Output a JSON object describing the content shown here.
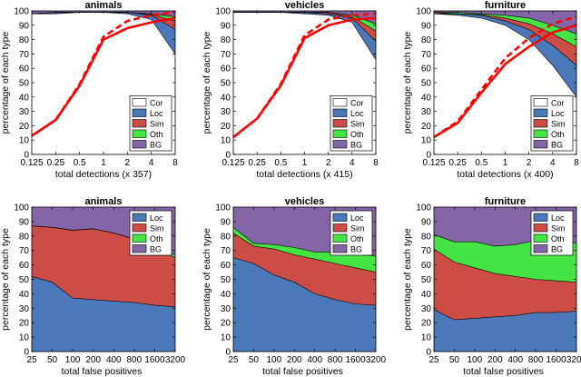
{
  "colors": {
    "cor": "#ffffff",
    "loc": "#4a78b8",
    "sim": "#cc4c46",
    "oth": "#45e445",
    "bg": "#8466a6",
    "recall": "#ff0000"
  },
  "chart_data": [
    {
      "type": "area",
      "title": "animals",
      "xlabel": "total detections (x 357)",
      "ylabel": "percentage of each type",
      "xscale": "log2",
      "xlim": [
        0.125,
        8
      ],
      "ylim": [
        0,
        100
      ],
      "xticks": [
        "0.125",
        "0.25",
        "0.5",
        "1",
        "2",
        "4",
        "8"
      ],
      "yticks": [
        "0",
        "10",
        "20",
        "30",
        "40",
        "50",
        "60",
        "70",
        "80",
        "90",
        "100"
      ],
      "legend": [
        "Cor",
        "Loc",
        "Sim",
        "Oth",
        "BG"
      ],
      "legend_position": "bottom-right",
      "x": [
        0.125,
        0.25,
        0.5,
        1,
        2,
        4,
        8
      ],
      "bands_cumulative": {
        "Cor": [
          98,
          98,
          99,
          99,
          98,
          94,
          70
        ],
        "Loc": [
          98,
          99,
          99,
          99,
          99,
          97,
          87
        ],
        "Sim": [
          98,
          99,
          99,
          99,
          99,
          97.5,
          93
        ],
        "Oth": [
          98,
          99,
          99,
          99,
          99,
          98,
          96
        ]
      },
      "recall_solid": [
        13,
        24,
        48,
        80,
        88,
        92,
        95
      ],
      "recall_dashed": [
        13,
        24,
        49,
        82,
        93,
        97,
        99
      ]
    },
    {
      "type": "area",
      "title": "vehicles",
      "xlabel": "total detections (x 415)",
      "ylabel": "percentage of each type",
      "xscale": "log2",
      "xlim": [
        0.125,
        8
      ],
      "ylim": [
        0,
        100
      ],
      "xticks": [
        "0.125",
        "0.25",
        "0.5",
        "1",
        "2",
        "4",
        "8"
      ],
      "yticks": [
        "0",
        "10",
        "20",
        "30",
        "40",
        "50",
        "60",
        "70",
        "80",
        "90",
        "100"
      ],
      "legend": [
        "Cor",
        "Loc",
        "Sim",
        "Oth",
        "BG"
      ],
      "legend_position": "bottom-right",
      "x": [
        0.125,
        0.25,
        0.5,
        1,
        2,
        4,
        8
      ],
      "bands_cumulative": {
        "Cor": [
          99,
          99,
          99,
          98,
          97,
          92,
          66
        ],
        "Loc": [
          99,
          99,
          99,
          99,
          98,
          95,
          79
        ],
        "Sim": [
          99,
          99,
          99,
          99,
          99,
          96,
          86
        ],
        "Oth": [
          99,
          99,
          99,
          99,
          99,
          97,
          91
        ]
      },
      "recall_solid": [
        12,
        25,
        48,
        81,
        90,
        94,
        95
      ],
      "recall_dashed": [
        12,
        25,
        49,
        83,
        94,
        97,
        98
      ]
    },
    {
      "type": "area",
      "title": "furniture",
      "xlabel": "total detections (x 400)",
      "ylabel": "percentage of each type",
      "xscale": "log2",
      "xlim": [
        0.125,
        8
      ],
      "ylim": [
        0,
        100
      ],
      "xticks": [
        "0.125",
        "0.25",
        "0.5",
        "1",
        "2",
        "4",
        "8"
      ],
      "yticks": [
        "0",
        "10",
        "20",
        "30",
        "40",
        "50",
        "60",
        "70",
        "80",
        "90",
        "100"
      ],
      "legend": [
        "Cor",
        "Loc",
        "Sim",
        "Oth",
        "BG"
      ],
      "legend_position": "bottom-right",
      "x": [
        0.125,
        0.25,
        0.5,
        1,
        2,
        4,
        8
      ],
      "bands_cumulative": {
        "Cor": [
          98,
          97,
          95,
          90,
          80,
          62,
          40
        ],
        "Loc": [
          98,
          98,
          97,
          93,
          87,
          76,
          62
        ],
        "Sim": [
          99,
          98,
          97.5,
          95,
          91,
          84,
          75
        ],
        "Oth": [
          99,
          99,
          98,
          97,
          95,
          90,
          84
        ]
      },
      "recall_solid": [
        12,
        22,
        43,
        63,
        75,
        85,
        90
      ],
      "recall_dashed": [
        12,
        23,
        45,
        67,
        81,
        91,
        96
      ]
    },
    {
      "type": "area",
      "title": "animals",
      "xlabel": "total false positives",
      "ylabel": "percentage of each type",
      "xscale": "log2",
      "xlim": [
        25,
        3200
      ],
      "ylim": [
        0,
        100
      ],
      "xticks": [
        "25",
        "50",
        "100",
        "200",
        "400",
        "800",
        "1600",
        "3200"
      ],
      "yticks": [
        "0",
        "10",
        "20",
        "30",
        "40",
        "50",
        "60",
        "70",
        "80",
        "90",
        "100"
      ],
      "legend": [
        "Loc",
        "Sim",
        "Oth",
        "BG"
      ],
      "legend_position": "top-right",
      "x": [
        25,
        50,
        100,
        200,
        400,
        800,
        1600,
        3200
      ],
      "bands_cumulative": {
        "Loc": [
          52,
          48,
          37,
          36,
          35,
          34,
          32,
          31
        ],
        "Sim": [
          87,
          86,
          84,
          85,
          82,
          78,
          72,
          65
        ],
        "Oth": [
          87,
          86,
          84,
          85,
          82,
          78,
          72,
          67
        ]
      }
    },
    {
      "type": "area",
      "title": "vehicles",
      "xlabel": "total false positives",
      "ylabel": "percentage of each type",
      "xscale": "log2",
      "xlim": [
        25,
        3200
      ],
      "ylim": [
        0,
        100
      ],
      "xticks": [
        "25",
        "50",
        "100",
        "200",
        "400",
        "800",
        "1600",
        "3200"
      ],
      "yticks": [
        "0",
        "10",
        "20",
        "30",
        "40",
        "50",
        "60",
        "70",
        "80",
        "90",
        "100"
      ],
      "legend": [
        "Loc",
        "Sim",
        "Oth",
        "BG"
      ],
      "legend_position": "top-right",
      "x": [
        25,
        50,
        100,
        200,
        400,
        800,
        1600,
        3200
      ],
      "bands_cumulative": {
        "Loc": [
          65,
          61,
          53,
          48,
          40,
          36,
          33,
          32
        ],
        "Sim": [
          82,
          73,
          71,
          67,
          64,
          61,
          58,
          55
        ],
        "Oth": [
          86,
          75,
          74,
          72,
          69,
          69,
          68,
          66
        ]
      }
    },
    {
      "type": "area",
      "title": "furniture",
      "xlabel": "total false positives",
      "ylabel": "percentage of each type",
      "xscale": "log2",
      "xlim": [
        25,
        3200
      ],
      "ylim": [
        0,
        100
      ],
      "xticks": [
        "25",
        "50",
        "100",
        "200",
        "400",
        "800",
        "1600",
        "3200"
      ],
      "yticks": [
        "0",
        "10",
        "20",
        "30",
        "40",
        "50",
        "60",
        "70",
        "80",
        "90",
        "100"
      ],
      "legend": [
        "Loc",
        "Sim",
        "Oth",
        "BG"
      ],
      "legend_position": "top-right",
      "x": [
        25,
        50,
        100,
        200,
        400,
        800,
        1600,
        3200
      ],
      "bands_cumulative": {
        "Loc": [
          29,
          22,
          23,
          24,
          25,
          27,
          27,
          28
        ],
        "Sim": [
          71,
          62,
          58,
          54,
          52,
          50,
          49,
          48
        ],
        "Oth": [
          81,
          76,
          76,
          73,
          74,
          77,
          77,
          75
        ]
      }
    }
  ]
}
